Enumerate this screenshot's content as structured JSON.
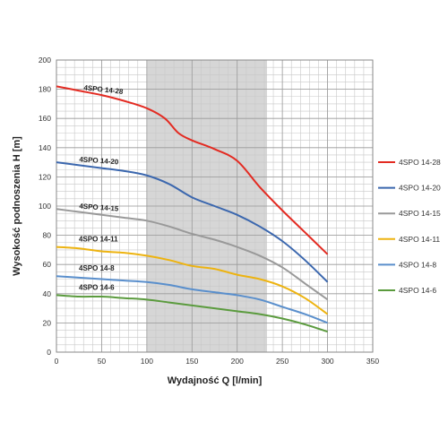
{
  "chart_data": {
    "type": "line",
    "xlabel": "Wydajność Q [l/min]",
    "ylabel": "Wysokość podnoszenia H [m]",
    "xlim": [
      0,
      350
    ],
    "ylim": [
      0,
      200
    ],
    "x_ticks": [
      0,
      50,
      100,
      150,
      200,
      250,
      300,
      350
    ],
    "y_ticks": [
      0,
      20,
      40,
      60,
      80,
      100,
      120,
      140,
      160,
      180,
      200
    ],
    "grid": true,
    "shaded_region": {
      "x_from": 100,
      "x_to": 233
    },
    "legend_position": "right",
    "series": [
      {
        "name": "4SPO 14-28",
        "label": "4SPO 14-28",
        "color": "#e32b22",
        "x": [
          0,
          25,
          50,
          75,
          100,
          120,
          135,
          150,
          175,
          200,
          225,
          250,
          275,
          300
        ],
        "y": [
          182,
          179,
          176,
          172,
          167,
          160,
          150,
          145,
          139,
          131,
          113,
          97,
          82,
          67
        ]
      },
      {
        "name": "4SPO 14-20",
        "label": "4SPO 14-20",
        "color": "#3b67ae",
        "x": [
          0,
          25,
          50,
          75,
          100,
          125,
          150,
          175,
          200,
          225,
          250,
          275,
          300
        ],
        "y": [
          130,
          128,
          126,
          124,
          121,
          115,
          106,
          100,
          94,
          86,
          76,
          63,
          48
        ]
      },
      {
        "name": "4SPO 14-15",
        "label": "4SPO 14-15",
        "color": "#999999",
        "x": [
          0,
          25,
          50,
          75,
          100,
          125,
          150,
          175,
          200,
          225,
          250,
          275,
          300
        ],
        "y": [
          98,
          96,
          94,
          92,
          90,
          86,
          81,
          77,
          72,
          66,
          58,
          47,
          36
        ]
      },
      {
        "name": "4SPO 14-11",
        "label": "4SPO 14-11",
        "color": "#edb310",
        "x": [
          0,
          25,
          50,
          75,
          100,
          125,
          150,
          175,
          200,
          225,
          250,
          275,
          300
        ],
        "y": [
          72,
          71,
          69,
          68,
          66,
          63,
          59,
          57,
          53,
          50,
          45,
          37,
          26
        ]
      },
      {
        "name": "4SPO 14-8",
        "label": "4SPO 14-8",
        "color": "#5a8fcc",
        "x": [
          0,
          25,
          50,
          75,
          100,
          125,
          150,
          175,
          200,
          225,
          250,
          275,
          300
        ],
        "y": [
          52,
          51,
          50,
          49,
          48,
          46,
          43,
          41,
          39,
          36,
          31,
          26,
          20
        ]
      },
      {
        "name": "4SPO 14-6",
        "label": "4SPO 14-6",
        "color": "#5b9b3e",
        "x": [
          0,
          25,
          50,
          75,
          100,
          125,
          150,
          175,
          200,
          225,
          250,
          275,
          300
        ],
        "y": [
          39,
          38,
          38,
          37,
          36,
          34,
          32,
          30,
          28,
          26,
          23,
          19,
          14
        ]
      }
    ]
  }
}
